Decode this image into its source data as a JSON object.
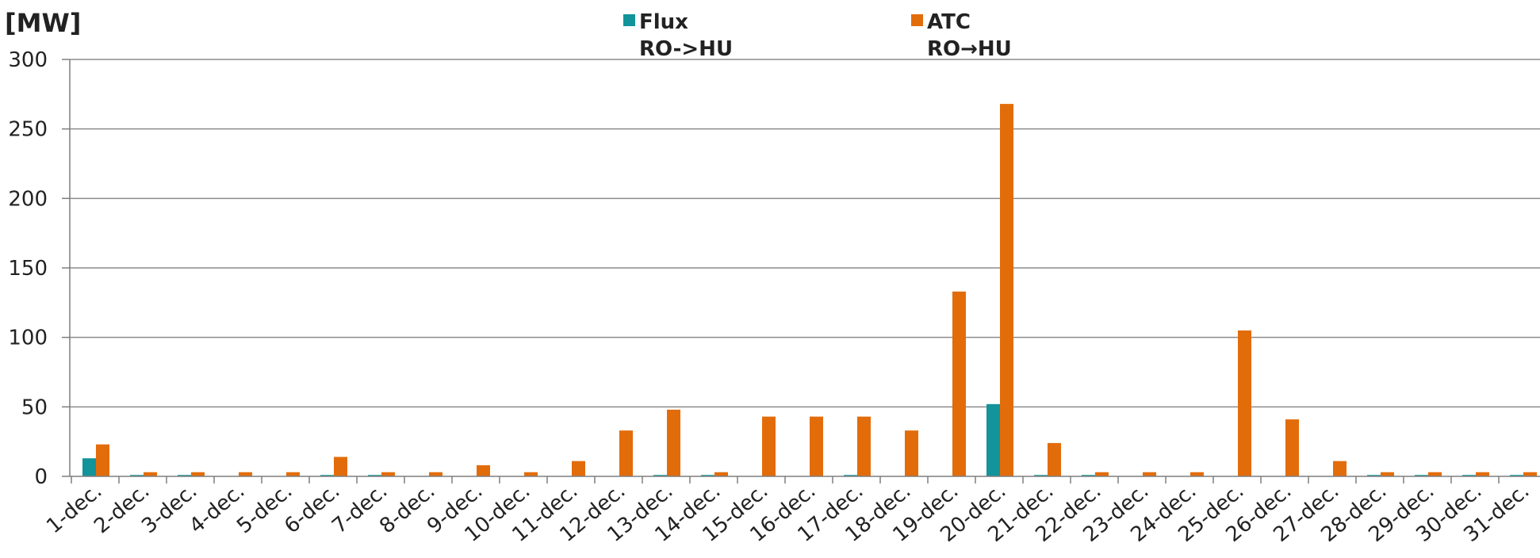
{
  "chart_data": {
    "type": "bar",
    "ylabel": "[MW]",
    "ylim": [
      0,
      300
    ],
    "yticks": [
      "0",
      "50",
      "100",
      "150",
      "200",
      "250",
      "300"
    ],
    "grid": true,
    "legend_position": "top-center",
    "categories": [
      "1-dec.",
      "2-dec.",
      "3-dec.",
      "4-dec.",
      "5-dec.",
      "6-dec.",
      "7-dec.",
      "8-dec.",
      "9-dec.",
      "10-dec.",
      "11-dec.",
      "12-dec.",
      "13-dec.",
      "14-dec.",
      "15-dec.",
      "16-dec.",
      "17-dec.",
      "18-dec.",
      "19-dec.",
      "20-dec.",
      "21-dec.",
      "22-dec.",
      "23-dec.",
      "24-dec.",
      "25-dec.",
      "26-dec.",
      "27-dec.",
      "28-dec.",
      "29-dec.",
      "30-dec.",
      "31-dec."
    ],
    "series": [
      {
        "name_line1": "Flux",
        "name_line2": "RO->HU",
        "color": "#13939a",
        "values": [
          13,
          1,
          1,
          0,
          0,
          1,
          1,
          0,
          0,
          0,
          0,
          0,
          1,
          1,
          0,
          0,
          1,
          0,
          0,
          52,
          1,
          1,
          0,
          0,
          0,
          0,
          0,
          1,
          1,
          1,
          1
        ]
      },
      {
        "name_line1": "ATC",
        "name_line2": "RO→HU",
        "color": "#e36c0a",
        "values": [
          23,
          3,
          3,
          3,
          3,
          14,
          3,
          3,
          8,
          3,
          11,
          33,
          48,
          3,
          43,
          43,
          43,
          33,
          133,
          268,
          24,
          3,
          3,
          3,
          105,
          41,
          11,
          3,
          3,
          3,
          3
        ]
      }
    ]
  },
  "colors": {
    "grid": "#8c8c8c",
    "axis": "#7f7f7f",
    "text": "#222222"
  }
}
